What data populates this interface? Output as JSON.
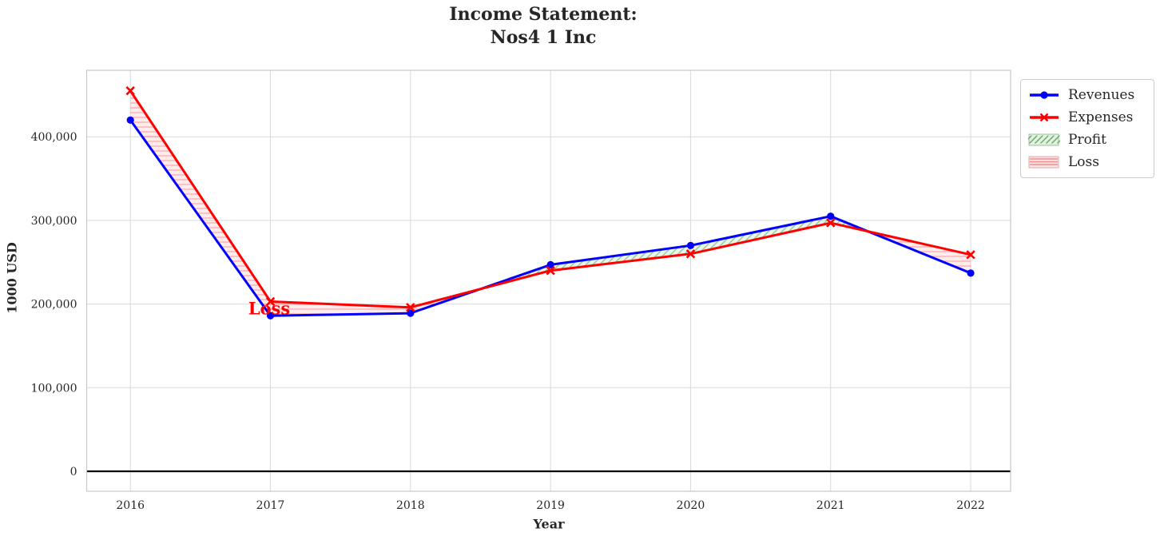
{
  "title": {
    "line1": "Income Statement:",
    "line2": "Nos4 1 Inc"
  },
  "chart_data": {
    "type": "line",
    "title": "Income Statement: Nos4 1 Inc",
    "xlabel": "Year",
    "ylabel": "1000 USD",
    "x": [
      2016,
      2017,
      2018,
      2019,
      2020,
      2021,
      2022
    ],
    "series": [
      {
        "name": "Revenues",
        "color": "#0000ff",
        "marker": "circle",
        "values": [
          420000,
          186000,
          189000,
          247000,
          270000,
          305000,
          237000
        ]
      },
      {
        "name": "Expenses",
        "color": "#ff0000",
        "marker": "x",
        "values": [
          455000,
          203000,
          196000,
          240000,
          260000,
          297000,
          259000
        ]
      }
    ],
    "fills": [
      {
        "name": "Profit",
        "condition": "revenues_above_expenses",
        "style": "green-diagonal-hatch"
      },
      {
        "name": "Loss",
        "condition": "expenses_above_revenues",
        "style": "red-horizontal-hatch"
      }
    ],
    "xticks": [
      "2016",
      "2017",
      "2018",
      "2019",
      "2020",
      "2021",
      "2022"
    ],
    "yticks": {
      "values": [
        0,
        100000,
        200000,
        300000,
        400000
      ],
      "labels": [
        "0",
        "100,000",
        "200,000",
        "300,000",
        "400,000"
      ]
    },
    "xlim": [
      2015.688,
      2022.285
    ],
    "ylim": [
      -23900,
      479500
    ],
    "grid": true,
    "zero_line": true,
    "legend_position": "upper-right-outside",
    "annotations": [
      {
        "text": "Loss",
        "x": 2017,
        "y": 200000,
        "color": "#ff0000"
      }
    ]
  },
  "legend": {
    "items": [
      {
        "label": "Revenues",
        "swatch": "line-circle",
        "color": "#0000ff"
      },
      {
        "label": "Expenses",
        "swatch": "line-x",
        "color": "#ff0000"
      },
      {
        "label": "Profit",
        "swatch": "patch-diagonal-hatch",
        "fill": "#e4f1e1",
        "hatch": "#69a969",
        "edge": "#9bbf9b"
      },
      {
        "label": "Loss",
        "swatch": "patch-horizontal-hatch",
        "fill": "#fce4e4",
        "hatch": "#f09090",
        "edge": "#e0a8a8"
      }
    ]
  },
  "colors": {
    "revenues": "#0000ff",
    "expenses": "#ff0000",
    "loss_fill": "rgba(255,0,0,0.07)",
    "loss_hatch": "rgba(255,70,70,0.40)",
    "profit_fill": "rgba(0,128,0,0.08)",
    "profit_hatch": "rgba(0,130,0,0.40)",
    "grid": "#d9d9d9",
    "spine": "#c8c8c8",
    "zero_line": "#000000",
    "tick_text": "#262626"
  }
}
